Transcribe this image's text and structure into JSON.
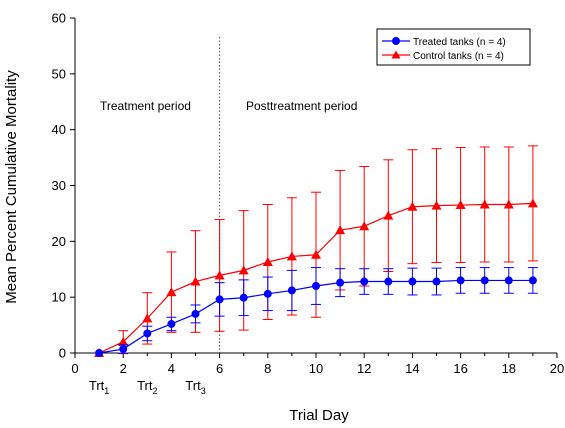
{
  "chart_data": {
    "type": "line",
    "xlabel": "Trial Day",
    "ylabel": "Mean Percent Cumulative Mortality",
    "xlim": [
      0,
      20
    ],
    "ylim": [
      0,
      60
    ],
    "x_ticks": [
      0,
      2,
      4,
      6,
      8,
      10,
      12,
      14,
      16,
      18,
      20
    ],
    "y_ticks": [
      0,
      10,
      20,
      30,
      40,
      50,
      60
    ],
    "grid": false,
    "legend_position": "top-right",
    "series": [
      {
        "name": "Treated tanks (n = 4)",
        "color": "#0000ff",
        "marker": "circle",
        "x": [
          1,
          2,
          3,
          4,
          5,
          6,
          7,
          8,
          9,
          10,
          11,
          12,
          13,
          14,
          15,
          16,
          17,
          18,
          19
        ],
        "y": [
          0,
          0.7,
          3.5,
          5.2,
          7.0,
          9.6,
          9.9,
          10.6,
          11.2,
          12.0,
          12.6,
          12.8,
          12.8,
          12.8,
          12.8,
          13.0,
          13.0,
          13.0,
          13.0
        ],
        "err": [
          0,
          0.8,
          1.3,
          1.2,
          1.6,
          3.0,
          3.2,
          3.0,
          3.6,
          3.3,
          2.5,
          2.3,
          2.3,
          2.4,
          2.4,
          2.3,
          2.3,
          2.3,
          2.3
        ]
      },
      {
        "name": "Control tanks (n = 4)",
        "color": "#ff0000",
        "marker": "triangle",
        "x": [
          1,
          2,
          3,
          4,
          5,
          6,
          7,
          8,
          9,
          10,
          11,
          12,
          13,
          14,
          15,
          16,
          17,
          18,
          19
        ],
        "y": [
          0,
          2.0,
          6.2,
          10.9,
          12.8,
          13.9,
          14.8,
          16.3,
          17.3,
          17.6,
          22.0,
          22.7,
          24.6,
          26.2,
          26.4,
          26.5,
          26.6,
          26.6,
          26.8
        ],
        "err": [
          0,
          2.0,
          4.6,
          7.2,
          9.1,
          10.0,
          10.7,
          10.3,
          10.5,
          11.2,
          10.7,
          10.7,
          10.0,
          10.2,
          10.2,
          10.3,
          10.3,
          10.3,
          10.3
        ]
      }
    ],
    "divider_x": 6,
    "annotations": {
      "treatment": "Treatment period",
      "posttreatment": "Posttreatment period",
      "trt_prefix": "Trt",
      "trt_subs": [
        "1",
        "2",
        "3"
      ],
      "trt_x": [
        1,
        3,
        5
      ]
    }
  }
}
